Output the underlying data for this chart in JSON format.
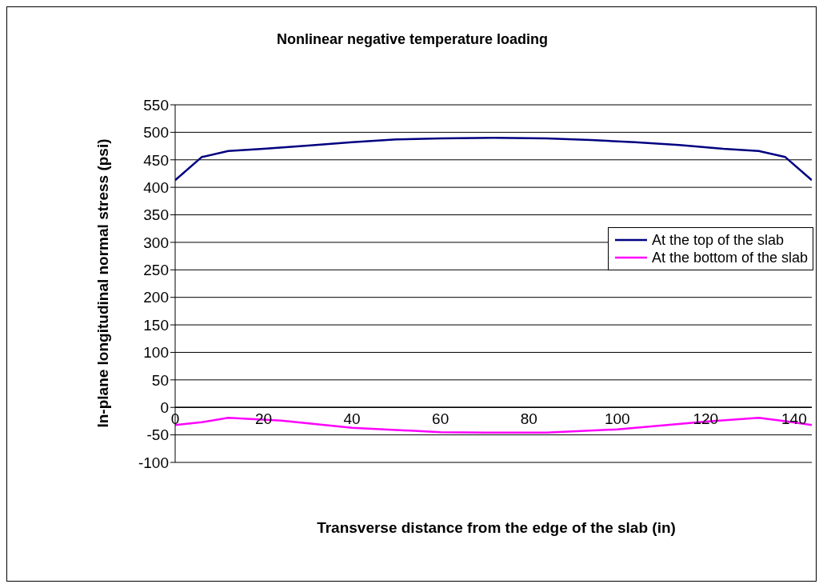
{
  "chart_data": {
    "type": "line",
    "title": "Nonlinear negative temperature loading",
    "xlabel": "Transverse distance from the edge of the slab (in)",
    "ylabel": "In-plane longitudinal normal stress (psi)",
    "xlim": [
      0,
      144
    ],
    "xticks": [
      0,
      20,
      40,
      60,
      80,
      100,
      120,
      140
    ],
    "ylim": [
      -100,
      550
    ],
    "yticks": [
      -100,
      -50,
      0,
      50,
      100,
      150,
      200,
      250,
      300,
      350,
      400,
      450,
      500,
      550
    ],
    "grid": "y",
    "legend": "right",
    "marker": "none",
    "series": [
      {
        "name": "At the top of the slab",
        "color": "#000080",
        "x": [
          0,
          6,
          12,
          20,
          30,
          40,
          50,
          60,
          72,
          84,
          94,
          104,
          114,
          124,
          132,
          138,
          144
        ],
        "values": [
          413,
          455,
          466,
          470,
          476,
          482,
          487,
          489,
          490,
          489,
          486,
          482,
          477,
          470,
          466,
          455,
          413
        ]
      },
      {
        "name": "At the bottom of the slab",
        "color": "#ff00ff",
        "x": [
          0,
          6,
          12,
          24,
          40,
          60,
          70,
          84,
          100,
          120,
          132,
          138,
          144
        ],
        "values": [
          -32,
          -27,
          -19,
          -24,
          -37,
          -45,
          -46,
          -46,
          -40,
          -26,
          -19,
          -25,
          -32
        ]
      }
    ]
  }
}
